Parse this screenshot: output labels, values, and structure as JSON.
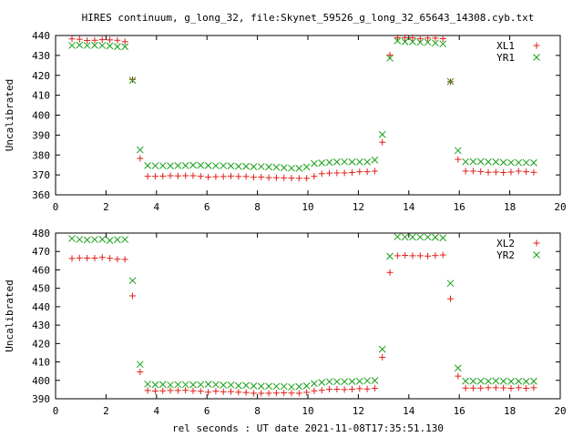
{
  "title": "HIRES continuum, g_long_32, file:Skynet_59526_g_long_32_65643_14308.cyb.txt",
  "xlabel": "rel seconds : UT date 2021-11-08T17:35:51.130",
  "colors": {
    "red": "#e0201a",
    "green": "#14a014",
    "axes": "#000000"
  },
  "chart_data": [
    {
      "type": "scatter",
      "title": "HIRES continuum, g_long_32, file:Skynet_59526_g_long_32_65643_14308.cyb.txt",
      "xlabel": "",
      "ylabel": "Uncalibrated",
      "xlim": [
        0,
        20
      ],
      "ylim": [
        360,
        440
      ],
      "xticks": [
        0,
        2,
        4,
        6,
        8,
        10,
        12,
        14,
        16,
        18,
        20
      ],
      "yticks": [
        360,
        370,
        380,
        390,
        400,
        410,
        420,
        430,
        440
      ],
      "grid": false,
      "legend_position": "top-right",
      "x": [
        0.65,
        0.95,
        1.25,
        1.55,
        1.85,
        2.15,
        2.45,
        2.75,
        3.05,
        3.35,
        3.65,
        3.95,
        4.25,
        4.55,
        4.85,
        5.15,
        5.45,
        5.75,
        6.05,
        6.35,
        6.65,
        6.95,
        7.25,
        7.55,
        7.85,
        8.15,
        8.45,
        8.75,
        9.05,
        9.35,
        9.65,
        9.95,
        10.25,
        10.55,
        10.85,
        11.15,
        11.45,
        11.75,
        12.05,
        12.35,
        12.65,
        12.95,
        13.25,
        13.55,
        13.85,
        14.15,
        14.45,
        14.75,
        15.05,
        15.35,
        15.65,
        15.95,
        16.25,
        16.55,
        16.85,
        17.15,
        17.45,
        17.75,
        18.05,
        18.35,
        18.65,
        18.95
      ],
      "series": [
        {
          "name": "XL1",
          "marker": "plus",
          "color": "#e0201a",
          "values": [
            438.3,
            438.1,
            437.5,
            437.6,
            437.9,
            437.8,
            437.6,
            436.9,
            417.9,
            378.3,
            369.3,
            369.3,
            369.4,
            369.6,
            369.5,
            369.6,
            369.6,
            369.3,
            368.9,
            369.1,
            369.2,
            369.4,
            369.2,
            369.2,
            368.8,
            368.9,
            368.6,
            368.6,
            368.5,
            368.4,
            368.3,
            368.3,
            369.3,
            370.6,
            370.9,
            371.0,
            371.0,
            371.2,
            371.6,
            371.6,
            371.9,
            386.4,
            430.2,
            438.9,
            438.9,
            438.9,
            438.5,
            438.7,
            438.7,
            438.4,
            416.8,
            377.8,
            371.9,
            371.9,
            371.7,
            371.3,
            371.4,
            371.2,
            371.4,
            371.9,
            371.6,
            371.3
          ]
        },
        {
          "name": "YR1",
          "marker": "cross",
          "color": "#14a014",
          "values": [
            435.0,
            435.2,
            435.0,
            435.1,
            435.0,
            434.8,
            434.4,
            434.4,
            417.5,
            382.6,
            374.7,
            374.6,
            374.6,
            374.5,
            374.7,
            374.7,
            374.9,
            374.8,
            374.7,
            374.6,
            374.6,
            374.5,
            374.3,
            374.3,
            374.1,
            374.2,
            374.0,
            373.9,
            373.6,
            373.4,
            373.3,
            374.0,
            375.7,
            376.0,
            376.3,
            376.5,
            376.6,
            376.5,
            376.5,
            376.5,
            377.5,
            390.3,
            428.6,
            437.3,
            436.9,
            436.9,
            436.6,
            436.6,
            436.2,
            435.8,
            416.9,
            382.2,
            376.6,
            376.7,
            376.7,
            376.5,
            376.5,
            376.3,
            376.2,
            376.2,
            376.2,
            376.1
          ]
        }
      ]
    },
    {
      "type": "scatter",
      "title": "",
      "xlabel": "rel seconds : UT date 2021-11-08T17:35:51.130",
      "ylabel": "Uncalibrated",
      "xlim": [
        0,
        20
      ],
      "ylim": [
        390,
        480
      ],
      "xticks": [
        0,
        2,
        4,
        6,
        8,
        10,
        12,
        14,
        16,
        18,
        20
      ],
      "yticks": [
        390,
        400,
        410,
        420,
        430,
        440,
        450,
        460,
        470,
        480
      ],
      "grid": false,
      "legend_position": "top-right",
      "x": [
        0.65,
        0.95,
        1.25,
        1.55,
        1.85,
        2.15,
        2.45,
        2.75,
        3.05,
        3.35,
        3.65,
        3.95,
        4.25,
        4.55,
        4.85,
        5.15,
        5.45,
        5.75,
        6.05,
        6.35,
        6.65,
        6.95,
        7.25,
        7.55,
        7.85,
        8.15,
        8.45,
        8.75,
        9.05,
        9.35,
        9.65,
        9.95,
        10.25,
        10.55,
        10.85,
        11.15,
        11.45,
        11.75,
        12.05,
        12.35,
        12.65,
        12.95,
        13.25,
        13.55,
        13.85,
        14.15,
        14.45,
        14.75,
        15.05,
        15.35,
        15.65,
        15.95,
        16.25,
        16.55,
        16.85,
        17.15,
        17.45,
        17.75,
        18.05,
        18.35,
        18.65,
        18.95
      ],
      "series": [
        {
          "name": "XL2",
          "marker": "plus",
          "color": "#e0201a",
          "values": [
            466.2,
            466.5,
            466.4,
            466.4,
            466.8,
            466.3,
            465.8,
            465.7,
            445.9,
            404.6,
            394.5,
            394.2,
            394.3,
            394.5,
            394.5,
            394.6,
            394.3,
            394.1,
            393.6,
            394.1,
            393.8,
            393.9,
            393.6,
            393.4,
            393.0,
            393.0,
            393.0,
            393.1,
            393.2,
            393.1,
            393.0,
            393.5,
            394.3,
            394.6,
            395.2,
            395.2,
            395.0,
            395.2,
            395.5,
            395.3,
            395.7,
            412.5,
            458.6,
            467.7,
            467.9,
            467.7,
            467.7,
            467.5,
            467.8,
            468.1,
            444.3,
            402.3,
            395.8,
            395.8,
            395.8,
            396.0,
            396.0,
            395.9,
            395.7,
            396.0,
            395.7,
            396.0
          ]
        },
        {
          "name": "YR2",
          "marker": "cross",
          "color": "#14a014",
          "values": [
            477.0,
            476.5,
            476.3,
            476.5,
            476.6,
            476.0,
            476.4,
            476.5,
            454.2,
            408.7,
            398.0,
            397.6,
            397.8,
            397.5,
            397.7,
            397.7,
            397.6,
            397.7,
            397.9,
            397.7,
            397.4,
            397.5,
            397.1,
            397.3,
            397.0,
            396.8,
            396.8,
            396.7,
            396.7,
            396.4,
            396.6,
            397.0,
            398.3,
            398.9,
            399.3,
            399.3,
            399.3,
            399.4,
            399.5,
            399.8,
            399.9,
            416.9,
            467.4,
            478.0,
            477.8,
            477.8,
            477.8,
            477.8,
            477.7,
            477.4,
            452.7,
            406.7,
            399.6,
            399.6,
            399.6,
            399.5,
            399.7,
            399.6,
            399.4,
            399.5,
            399.4,
            399.5
          ]
        }
      ]
    }
  ]
}
